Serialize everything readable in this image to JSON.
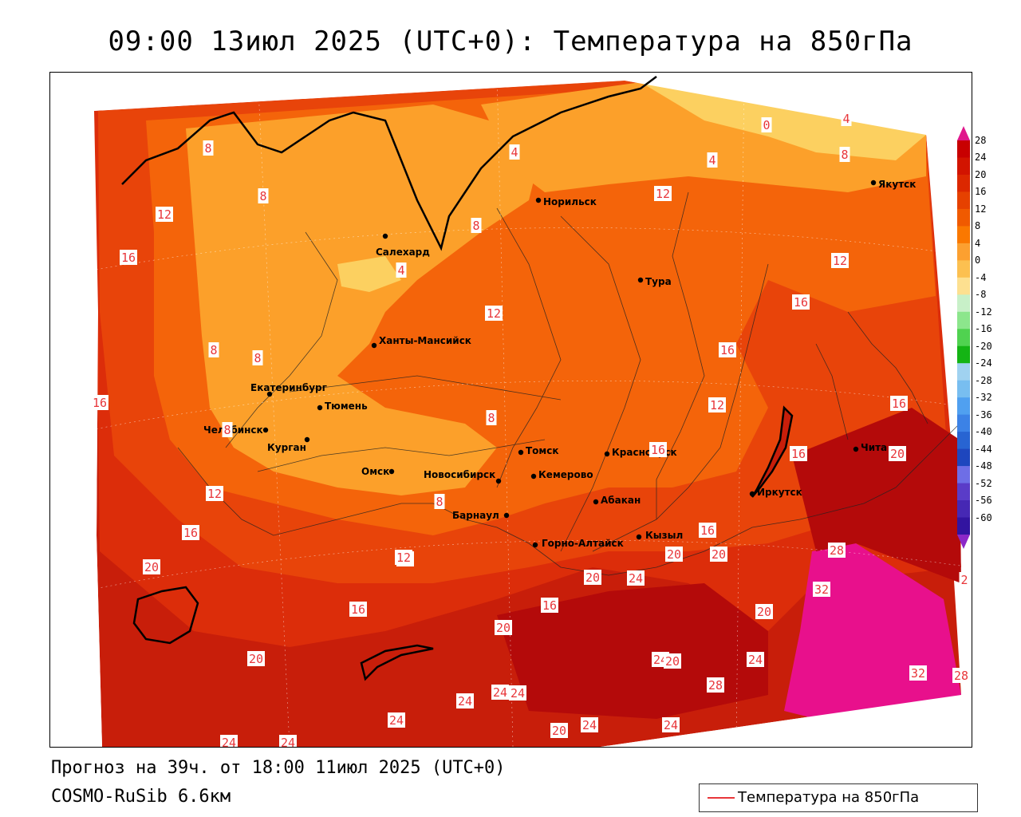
{
  "title": "09:00 13июл 2025 (UTC+0): Температура на 850гПа",
  "footer": {
    "forecast": "Прогноз на 39ч. от 18:00 11июл 2025 (UTC+0)",
    "model": "COSMO-RuSib 6.6км"
  },
  "legend": {
    "label": "Температура на 850гПа",
    "line_color": "#e8363a"
  },
  "colorbar": {
    "ticks": [
      "28",
      "24",
      "20",
      "16",
      "12",
      "8",
      "4",
      "0",
      "-4",
      "-8",
      "-12",
      "-16",
      "-20",
      "-24",
      "-28",
      "-32",
      "-36",
      "-40",
      "-44",
      "-48",
      "-52",
      "-56",
      "-60"
    ],
    "colors": [
      "#c80000",
      "#d21400",
      "#dc2800",
      "#e64100",
      "#f05a00",
      "#fa7800",
      "#fca030",
      "#fcc050",
      "#fde090",
      "#c8f0c8",
      "#8ce68c",
      "#50d250",
      "#14b414",
      "#a0d2f0",
      "#78bef0",
      "#50a0f0",
      "#3c82e6",
      "#2864d2",
      "#1e46be",
      "#6e6ee6",
      "#5a3cc8",
      "#4628b4",
      "#3214a0"
    ],
    "top_arrow_color": "#e0188c",
    "bottom_arrow_color": "#8c28c8"
  },
  "cities": [
    {
      "name": "Салехард"
    },
    {
      "name": "Норильск"
    },
    {
      "name": "Тура"
    },
    {
      "name": "Якутск"
    },
    {
      "name": "Ханты-Мансийск"
    },
    {
      "name": "Екатеринбург"
    },
    {
      "name": "Тюмень"
    },
    {
      "name": "Челябинск"
    },
    {
      "name": "Курган"
    },
    {
      "name": "Омск"
    },
    {
      "name": "Новосибирск"
    },
    {
      "name": "Барнаул"
    },
    {
      "name": "Томск"
    },
    {
      "name": "Кемерово"
    },
    {
      "name": "Красноярск"
    },
    {
      "name": "Абакан"
    },
    {
      "name": "Горно-Алтайск"
    },
    {
      "name": "Кызыл"
    },
    {
      "name": "Иркутск"
    },
    {
      "name": "Чита"
    }
  ],
  "isotherm_labels": [
    {
      "value": "8"
    },
    {
      "value": "12"
    },
    {
      "value": "16"
    },
    {
      "value": "8"
    },
    {
      "value": "8"
    },
    {
      "value": "4"
    },
    {
      "value": "4"
    },
    {
      "value": "8"
    },
    {
      "value": "8"
    },
    {
      "value": "12"
    },
    {
      "value": "4"
    },
    {
      "value": "0"
    },
    {
      "value": "4"
    },
    {
      "value": "8"
    },
    {
      "value": "12"
    },
    {
      "value": "16"
    },
    {
      "value": "12"
    },
    {
      "value": "16"
    },
    {
      "value": "12"
    },
    {
      "value": "16"
    },
    {
      "value": "8"
    },
    {
      "value": "8"
    },
    {
      "value": "12"
    },
    {
      "value": "16"
    },
    {
      "value": "16"
    },
    {
      "value": "20"
    },
    {
      "value": "12"
    },
    {
      "value": "8"
    },
    {
      "value": "16"
    },
    {
      "value": "16"
    },
    {
      "value": "16"
    },
    {
      "value": "20"
    },
    {
      "value": "20"
    },
    {
      "value": "16"
    },
    {
      "value": "24"
    },
    {
      "value": "20"
    },
    {
      "value": "28"
    },
    {
      "value": "32"
    },
    {
      "value": "20"
    },
    {
      "value": "20"
    },
    {
      "value": "16"
    },
    {
      "value": "20"
    },
    {
      "value": "20"
    },
    {
      "value": "24"
    },
    {
      "value": "24"
    },
    {
      "value": "28"
    },
    {
      "value": "24"
    },
    {
      "value": "32"
    },
    {
      "value": "24"
    },
    {
      "value": "24"
    },
    {
      "value": "24"
    },
    {
      "value": "20"
    },
    {
      "value": "24"
    },
    {
      "value": "24"
    },
    {
      "value": "24"
    },
    {
      "value": "24"
    },
    {
      "value": "2"
    },
    {
      "value": "28"
    },
    {
      "value": "12"
    },
    {
      "value": "20"
    }
  ]
}
